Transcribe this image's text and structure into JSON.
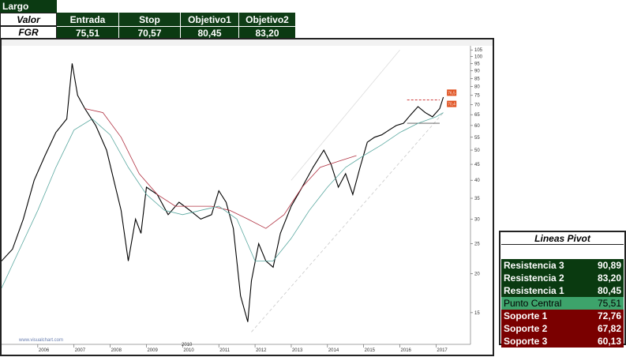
{
  "trade": {
    "title": "Largo",
    "headers": [
      "Valor",
      "Entrada",
      "Stop",
      "Objetivo1",
      "Objetivo2"
    ],
    "ticker": "FGR",
    "values": [
      "75,51",
      "70,57",
      "80,45",
      "83,20"
    ]
  },
  "chart_data": {
    "type": "line",
    "subtype": "ohlc-price-chart",
    "source_label": "www.visualchart.com",
    "x_tick_labels": [
      "2006",
      "2007",
      "2008",
      "2009",
      "2010",
      "2011",
      "2012",
      "2013",
      "2014",
      "2015",
      "2016",
      "2017"
    ],
    "x_bottom_label": "2010",
    "y_tick_labels": [
      "105",
      "100",
      "95",
      "90",
      "85",
      "80",
      "75",
      "70",
      "65",
      "60",
      "55",
      "50",
      "45",
      "40",
      "35",
      "30",
      "25",
      "20",
      "15"
    ],
    "ylim": [
      12,
      107
    ],
    "y_scale": "log",
    "price_markers": [
      "76,5",
      "70,4"
    ],
    "series": [
      {
        "name": "price",
        "color": "#000000",
        "x": [
          2005.0,
          2005.3,
          2005.6,
          2005.9,
          2006.2,
          2006.5,
          2006.8,
          2006.95,
          2007.1,
          2007.3,
          2007.6,
          2007.9,
          2008.1,
          2008.3,
          2008.5,
          2008.7,
          2008.85,
          2009.0,
          2009.3,
          2009.6,
          2009.9,
          2010.2,
          2010.5,
          2010.8,
          2011.0,
          2011.2,
          2011.4,
          2011.6,
          2011.8,
          2011.9,
          2012.1,
          2012.3,
          2012.5,
          2012.7,
          2013.0,
          2013.3,
          2013.6,
          2013.9,
          2014.1,
          2014.3,
          2014.5,
          2014.7,
          2014.9,
          2015.1,
          2015.3,
          2015.5,
          2015.7,
          2015.9,
          2016.1,
          2016.3,
          2016.5,
          2016.7,
          2016.9,
          2017.1,
          2017.2
        ],
        "y": [
          22,
          24,
          30,
          40,
          48,
          57,
          63,
          95,
          75,
          68,
          60,
          50,
          40,
          32,
          22,
          30,
          27,
          38,
          36,
          31,
          34,
          32,
          30,
          31,
          37,
          34,
          28,
          17,
          14,
          19,
          25,
          22,
          21,
          27,
          33,
          38,
          44,
          50,
          45,
          38,
          42,
          36,
          44,
          53,
          55,
          56,
          58,
          60,
          61,
          65,
          69,
          66,
          64,
          68,
          74
        ]
      },
      {
        "name": "moving-average-long",
        "color": "#b03040",
        "x": [
          2007.3,
          2007.8,
          2008.3,
          2008.8,
          2009.3,
          2009.8,
          2010.3,
          2010.8,
          2011.3,
          2011.8,
          2012.3,
          2012.8,
          2013.3,
          2013.8,
          2014.3,
          2014.8
        ],
        "y": [
          68,
          66,
          55,
          42,
          36,
          33,
          33,
          33,
          32,
          30,
          28,
          31,
          38,
          44,
          46,
          48
        ]
      },
      {
        "name": "moving-average-short",
        "color": "#5aa8a0",
        "x": [
          2005.0,
          2005.5,
          2006.0,
          2006.5,
          2007.0,
          2007.5,
          2008.0,
          2008.5,
          2009.0,
          2009.5,
          2010.0,
          2010.5,
          2011.0,
          2011.5,
          2012.0,
          2012.5,
          2013.0,
          2013.5,
          2014.0,
          2014.5,
          2015.0,
          2015.5,
          2016.0,
          2016.5,
          2017.0,
          2017.2
        ],
        "y": [
          18,
          24,
          32,
          44,
          58,
          63,
          56,
          44,
          36,
          32,
          31,
          32,
          33,
          30,
          22,
          22,
          26,
          32,
          38,
          44,
          48,
          52,
          57,
          61,
          64,
          66
        ]
      }
    ]
  },
  "pivot": {
    "title": "Lineas Pivot",
    "rows": [
      {
        "label": "Resistencia 3",
        "value": "90,89",
        "kind": "res"
      },
      {
        "label": "Resistencia 2",
        "value": "83,20",
        "kind": "res"
      },
      {
        "label": "Resistencia 1",
        "value": "80,45",
        "kind": "res"
      },
      {
        "label": "Punto Central",
        "value": "75,51",
        "kind": "cen"
      },
      {
        "label": "Soporte 1",
        "value": "72,76",
        "kind": "sup"
      },
      {
        "label": "Soporte 2",
        "value": "67,82",
        "kind": "sup"
      },
      {
        "label": "Soporte 3",
        "value": "60,13",
        "kind": "sup"
      }
    ]
  }
}
